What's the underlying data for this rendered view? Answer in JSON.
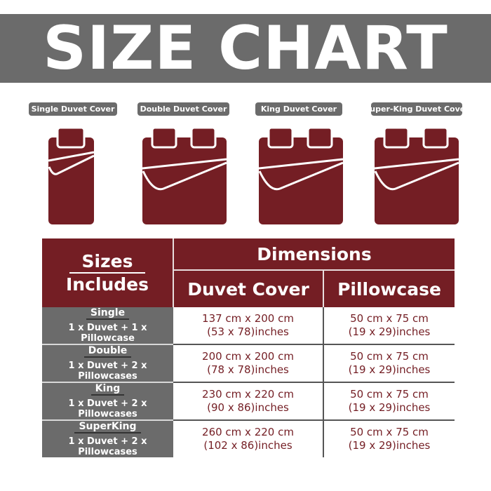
{
  "title": "SIZE CHART",
  "colors": {
    "maroon": "#741e24",
    "gray": "#6b6b6b"
  },
  "products": [
    {
      "label": "Single Duvet Cover",
      "pillows": 1
    },
    {
      "label": "Double Duvet Cover",
      "pillows": 2
    },
    {
      "label": "King Duvet Cover",
      "pillows": 2
    },
    {
      "label": "Super-King Duvet Cover",
      "pillows": 2
    }
  ],
  "table": {
    "sizes_header_1": "Sizes",
    "sizes_header_2": "Includes",
    "dimensions_header": "Dimensions",
    "duvet_header": "Duvet Cover",
    "pillow_header": "Pillowcase",
    "rows": [
      {
        "size": "Single",
        "includes": "1 x Duvet + 1 x Pillowcase",
        "duvet_cm": "137 cm x 200 cm",
        "duvet_in": "(53 x 78)inches",
        "pillow_cm": "50 cm x 75 cm",
        "pillow_in": "(19 x 29)inches"
      },
      {
        "size": "Double",
        "includes": "1 x Duvet + 2 x Pillowcases",
        "duvet_cm": "200 cm x 200 cm",
        "duvet_in": "(78 x 78)inches",
        "pillow_cm": "50 cm x 75 cm",
        "pillow_in": "(19 x 29)inches"
      },
      {
        "size": "King",
        "includes": "1 x Duvet + 2 x Pillowcases",
        "duvet_cm": "230 cm x 220 cm",
        "duvet_in": "(90 x 86)inches",
        "pillow_cm": "50 cm x 75 cm",
        "pillow_in": "(19 x 29)inches"
      },
      {
        "size": "SuperKing",
        "includes": "1 x Duvet + 2 x Pillowcases",
        "duvet_cm": "260 cm x 220 cm",
        "duvet_in": "(102 x 86)inches",
        "pillow_cm": "50 cm x 75 cm",
        "pillow_in": "(19 x 29)inches"
      }
    ]
  }
}
